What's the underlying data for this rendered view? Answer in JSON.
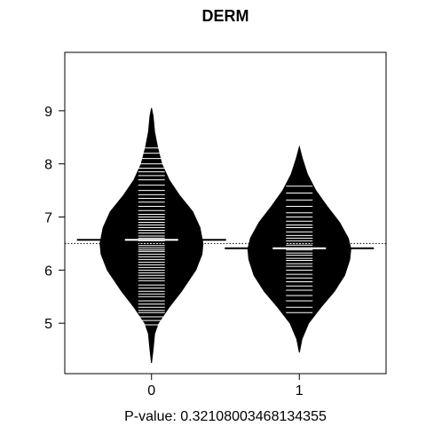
{
  "chart_data": {
    "type": "beanplot",
    "title": "DERM",
    "xlabel": "P-value: 0.32108003468134355",
    "ylabel": "",
    "categories": [
      "0",
      "1"
    ],
    "ylim": [
      4.05,
      10.1
    ],
    "y_ticks": [
      5,
      6,
      7,
      8,
      9
    ],
    "y_tick_labels": [
      "5",
      "6",
      "7",
      "8",
      "9"
    ],
    "overall_mean": 6.5,
    "reference_line_style": "dotted",
    "grid": false,
    "legend": "none",
    "colors": {
      "bean_fill": "#000000",
      "data_lines": "#ffffff",
      "axis": "#000000",
      "background": "#ffffff"
    },
    "beans": [
      {
        "category": "0",
        "mean": 6.57,
        "min": 4.25,
        "max": 9.05,
        "density_profile": [
          [
            4.25,
            0.0
          ],
          [
            4.5,
            0.03
          ],
          [
            4.8,
            0.06
          ],
          [
            5.0,
            0.13
          ],
          [
            5.3,
            0.34
          ],
          [
            5.6,
            0.58
          ],
          [
            6.0,
            0.86
          ],
          [
            6.3,
            0.98
          ],
          [
            6.5,
            1.0
          ],
          [
            6.8,
            0.94
          ],
          [
            7.1,
            0.8
          ],
          [
            7.4,
            0.55
          ],
          [
            7.7,
            0.34
          ],
          [
            8.0,
            0.2
          ],
          [
            8.3,
            0.12
          ],
          [
            8.6,
            0.06
          ],
          [
            8.9,
            0.03
          ],
          [
            9.05,
            0.0
          ]
        ],
        "values": [
          4.97,
          5.05,
          5.12,
          5.2,
          5.24,
          5.3,
          5.36,
          5.42,
          5.5,
          5.55,
          5.6,
          5.66,
          5.72,
          5.8,
          5.85,
          5.9,
          5.95,
          6.0,
          6.05,
          6.1,
          6.15,
          6.2,
          6.25,
          6.3,
          6.35,
          6.38,
          6.42,
          6.46,
          6.5,
          6.55,
          6.6,
          6.64,
          6.7,
          6.75,
          6.8,
          6.85,
          6.9,
          6.95,
          7.0,
          7.05,
          7.12,
          7.2,
          7.28,
          7.35,
          7.42,
          7.5,
          7.6,
          7.7,
          7.78,
          7.85,
          7.92,
          8.0,
          8.1,
          8.2,
          8.3
        ]
      },
      {
        "category": "1",
        "mean": 6.41,
        "min": 4.45,
        "max": 8.32,
        "density_profile": [
          [
            4.45,
            0.0
          ],
          [
            4.7,
            0.05
          ],
          [
            5.0,
            0.18
          ],
          [
            5.3,
            0.42
          ],
          [
            5.6,
            0.68
          ],
          [
            5.9,
            0.88
          ],
          [
            6.2,
            0.98
          ],
          [
            6.4,
            1.0
          ],
          [
            6.6,
            0.95
          ],
          [
            6.9,
            0.78
          ],
          [
            7.2,
            0.54
          ],
          [
            7.5,
            0.32
          ],
          [
            7.8,
            0.16
          ],
          [
            8.1,
            0.06
          ],
          [
            8.32,
            0.0
          ]
        ],
        "values": [
          5.2,
          5.3,
          5.42,
          5.52,
          5.62,
          5.7,
          5.78,
          5.85,
          5.92,
          6.0,
          6.07,
          6.12,
          6.18,
          6.22,
          6.28,
          6.32,
          6.38,
          6.42,
          6.47,
          6.5,
          6.55,
          6.6,
          6.65,
          6.72,
          6.8,
          6.85,
          6.92,
          7.0,
          7.08,
          7.2,
          7.32,
          7.45,
          7.58
        ]
      }
    ]
  }
}
